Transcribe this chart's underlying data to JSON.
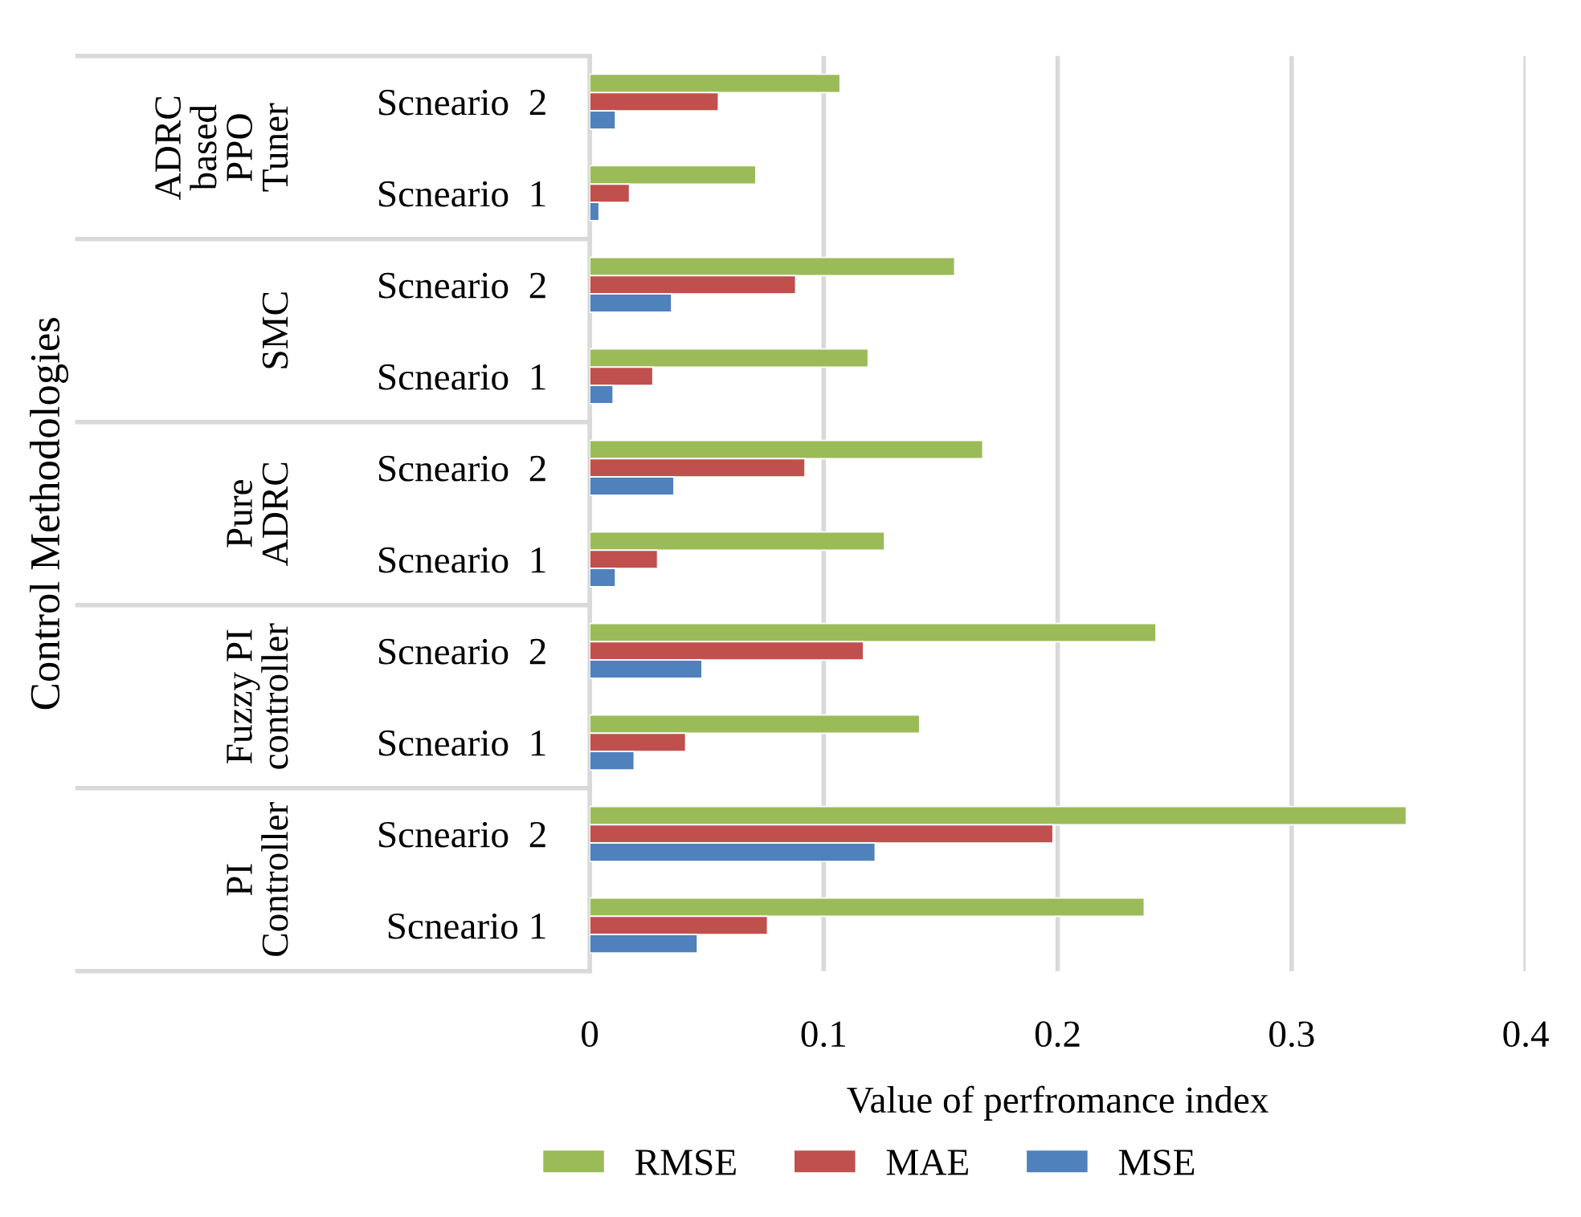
{
  "chart_data": {
    "type": "bar",
    "orientation": "horizontal",
    "categories": [
      "Scneario  2",
      "Scneario  1",
      "Scneario  2",
      "Scneario  1",
      "Scneario  2",
      "Scneario  1",
      "Scneario  2",
      "Scneario  1",
      "Scneario  2",
      "Scneario 1"
    ],
    "annotations": [
      "ADRC\nbased\nPPO\nTuner",
      "SMC",
      "Pure\nADRC",
      "Fuzzy PI\ncontroller",
      "PI\nController",
      "Control Methodologies"
    ],
    "series": [
      {
        "name": "RMSE",
        "color": "#9bbb59",
        "values": [
          0.107,
          0.071,
          0.156,
          0.119,
          0.168,
          0.126,
          0.242,
          0.141,
          0.349,
          0.237
        ]
      },
      {
        "name": "MAE",
        "color": "#c0504d",
        "values": [
          0.055,
          0.017,
          0.088,
          0.027,
          0.092,
          0.029,
          0.117,
          0.041,
          0.198,
          0.076
        ]
      },
      {
        "name": "MSE",
        "color": "#4f81bd",
        "values": [
          0.011,
          0.004,
          0.035,
          0.01,
          0.036,
          0.011,
          0.048,
          0.019,
          0.122,
          0.046
        ]
      }
    ],
    "xlabel": "Value of perfromance index",
    "xlim": [
      0,
      0.4
    ],
    "xticks": [
      0,
      0.1,
      0.2,
      0.3,
      0.4
    ],
    "grid": "x",
    "legend": "bottom"
  }
}
